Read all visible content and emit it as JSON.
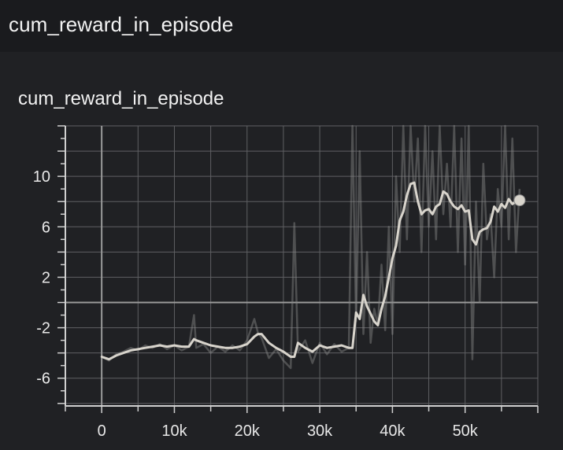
{
  "header": {
    "title": "cum_reward_in_episode"
  },
  "card": {
    "title": "cum_reward_in_episode"
  },
  "colors": {
    "background": "#202124",
    "grid": "#5f6063",
    "smoothed": "#d8d4cc",
    "raw": "#8a8a8a"
  },
  "chart_data": {
    "type": "line",
    "title": "cum_reward_in_episode",
    "xlabel": "",
    "ylabel": "",
    "xlim": [
      -5000,
      60000
    ],
    "ylim": [
      -8.2,
      14
    ],
    "xticks": [
      0,
      10000,
      20000,
      30000,
      40000,
      50000
    ],
    "xtick_labels": [
      "0",
      "10k",
      "20k",
      "30k",
      "40k",
      "50k"
    ],
    "yticks": [
      10,
      6,
      2,
      -2,
      -6
    ],
    "ytick_labels": [
      "10",
      "6",
      "2",
      "-2",
      "-6"
    ],
    "grid": true,
    "series": [
      {
        "style": "raw",
        "x": [
          0,
          1000,
          2000,
          3000,
          4000,
          5000,
          6000,
          7000,
          8000,
          9000,
          10000,
          11000,
          12000,
          12700,
          13000,
          14000,
          15000,
          16000,
          17000,
          18000,
          19000,
          20000,
          21000,
          21500,
          22000,
          23000,
          24000,
          25000,
          26000,
          26500,
          27000,
          28000,
          29000,
          30000,
          31000,
          32000,
          33000,
          34000,
          34500,
          35000,
          35500,
          36000,
          36500,
          37000,
          37500,
          38000,
          38500,
          39000,
          39500,
          40000,
          40500,
          41000,
          41500,
          42000,
          42500,
          43000,
          43500,
          44000,
          44500,
          45000,
          45500,
          46000,
          46500,
          47000,
          47500,
          48000,
          48500,
          49000,
          49500,
          50000,
          50500,
          51000,
          51500,
          52000,
          52500,
          53000,
          53500,
          54000,
          54500,
          55000,
          55500,
          56000,
          56500,
          57000,
          57500
        ],
        "y": [
          -4.3,
          -4.6,
          -4.1,
          -3.9,
          -3.6,
          -3.8,
          -3.4,
          -3.6,
          -3.3,
          -3.7,
          -3.4,
          -3.8,
          -3.5,
          -1.0,
          -3.6,
          -3.3,
          -4.0,
          -3.5,
          -3.9,
          -3.4,
          -3.8,
          -3.0,
          -1.3,
          -2.4,
          -2.8,
          -4.4,
          -3.7,
          -4.6,
          -5.2,
          6.3,
          -3.9,
          -3.0,
          -4.8,
          -3.2,
          -4.1,
          -3.3,
          -3.9,
          -3.6,
          14,
          -1.5,
          12,
          -2.5,
          4,
          -3.2,
          -0.5,
          -1.8,
          3,
          -2.2,
          6,
          -2.5,
          10,
          4,
          14,
          5,
          14,
          8,
          13,
          4,
          14,
          6,
          12,
          5,
          14,
          7,
          11,
          6,
          14,
          4,
          13,
          3,
          14,
          -4.5,
          8,
          0,
          11,
          5,
          7,
          2,
          9,
          6,
          14,
          5,
          13,
          4,
          9
        ]
      },
      {
        "style": "smoothed",
        "x": [
          0,
          1000,
          2000,
          3000,
          4000,
          5000,
          6000,
          7000,
          8000,
          9000,
          10000,
          11000,
          12000,
          12700,
          13000,
          14000,
          15000,
          16000,
          17000,
          18000,
          19000,
          20000,
          21000,
          21500,
          22000,
          23000,
          24000,
          25000,
          26000,
          26500,
          27000,
          28000,
          29000,
          30000,
          31000,
          32000,
          33000,
          34000,
          34500,
          35000,
          35500,
          36000,
          36500,
          37000,
          37500,
          38000,
          38500,
          39000,
          39500,
          40000,
          40500,
          41000,
          41500,
          42000,
          42500,
          43000,
          43500,
          44000,
          44500,
          45000,
          45500,
          46000,
          46500,
          47000,
          47500,
          48000,
          48500,
          49000,
          49500,
          50000,
          50500,
          51000,
          51500,
          52000,
          52500,
          53000,
          53500,
          54000,
          54500,
          55000,
          55500,
          56000,
          56500,
          57000,
          57500
        ],
        "y": [
          -4.3,
          -4.5,
          -4.2,
          -4.0,
          -3.8,
          -3.7,
          -3.6,
          -3.5,
          -3.4,
          -3.5,
          -3.4,
          -3.5,
          -3.5,
          -2.9,
          -3.0,
          -3.2,
          -3.4,
          -3.5,
          -3.6,
          -3.6,
          -3.5,
          -3.3,
          -2.7,
          -2.5,
          -2.5,
          -3.2,
          -3.6,
          -3.9,
          -4.3,
          -4.3,
          -3.2,
          -3.6,
          -3.9,
          -3.4,
          -3.6,
          -3.5,
          -3.4,
          -3.6,
          -3.6,
          -0.8,
          -1.3,
          0.6,
          -0.3,
          -0.9,
          -1.5,
          -1.8,
          -0.5,
          0.5,
          2.0,
          3.5,
          4.5,
          6.5,
          7.2,
          8.5,
          9.4,
          9.5,
          8.0,
          7.0,
          7.3,
          7.4,
          7.0,
          7.6,
          7.8,
          8.8,
          8.6,
          8.0,
          7.6,
          7.4,
          7.7,
          7.2,
          7.3,
          5.0,
          4.6,
          5.6,
          5.8,
          5.9,
          6.4,
          7.6,
          7.2,
          7.8,
          7.5,
          8.2,
          7.8,
          8.0,
          8.1
        ]
      }
    ],
    "end_marker": {
      "x": 57500,
      "y": 8.1
    }
  }
}
